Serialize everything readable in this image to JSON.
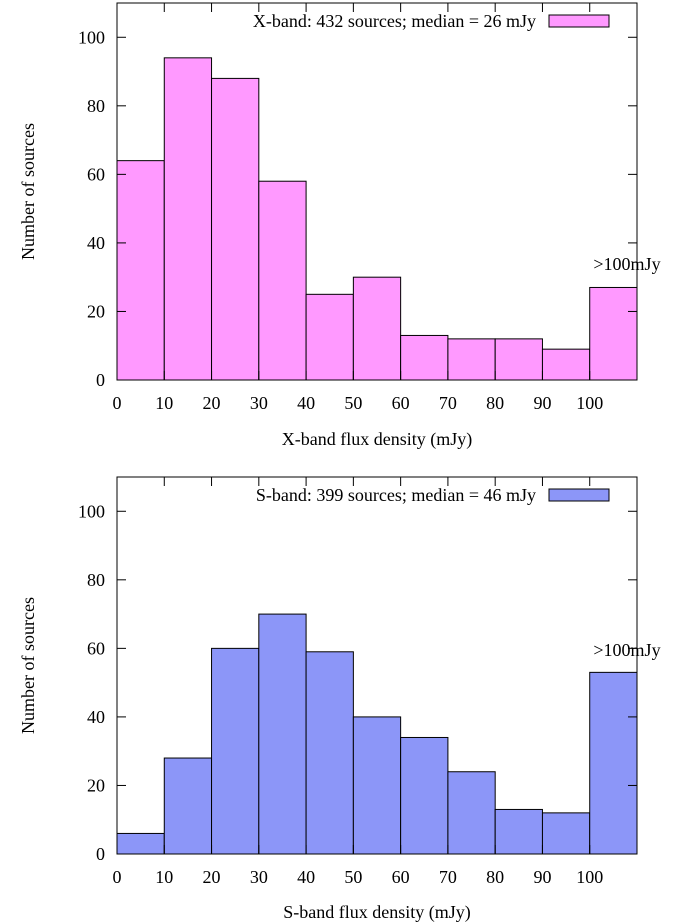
{
  "chart_data": [
    {
      "type": "bar",
      "x_bin_starts": [
        0,
        10,
        20,
        30,
        40,
        50,
        60,
        70,
        80,
        90,
        100
      ],
      "bin_width": 10,
      "values": [
        64,
        94,
        88,
        58,
        25,
        30,
        13,
        12,
        12,
        9,
        27
      ],
      "xlabel": "X-band flux density (mJy)",
      "ylabel": "Number of sources",
      "xlim": [
        0,
        110
      ],
      "ylim": [
        0,
        110
      ],
      "x_ticks": [
        "0",
        "10",
        "20",
        "30",
        "40",
        "50",
        "60",
        "70",
        "80",
        "90",
        "100"
      ],
      "y_ticks": [
        "0",
        "20",
        "40",
        "60",
        "80",
        "100"
      ],
      "legend": "X-band: 432 sources; median = 26 mJy",
      "legend_position": "top-right",
      "annotation": ">100mJy",
      "grid": false,
      "color": "#ff99ff"
    },
    {
      "type": "bar",
      "x_bin_starts": [
        0,
        10,
        20,
        30,
        40,
        50,
        60,
        70,
        80,
        90,
        100
      ],
      "bin_width": 10,
      "values": [
        6,
        28,
        60,
        70,
        59,
        40,
        34,
        24,
        13,
        12,
        53
      ],
      "xlabel": "S-band flux density (mJy)",
      "ylabel": "Number of sources",
      "xlim": [
        0,
        110
      ],
      "ylim": [
        0,
        110
      ],
      "x_ticks": [
        "0",
        "10",
        "20",
        "30",
        "40",
        "50",
        "60",
        "70",
        "80",
        "90",
        "100"
      ],
      "y_ticks": [
        "0",
        "20",
        "40",
        "60",
        "80",
        "100"
      ],
      "legend": "S-band: 399 sources; median = 46 mJy",
      "legend_position": "top-right",
      "annotation": ">100mJy",
      "grid": false,
      "color": "#8c96f8"
    }
  ]
}
